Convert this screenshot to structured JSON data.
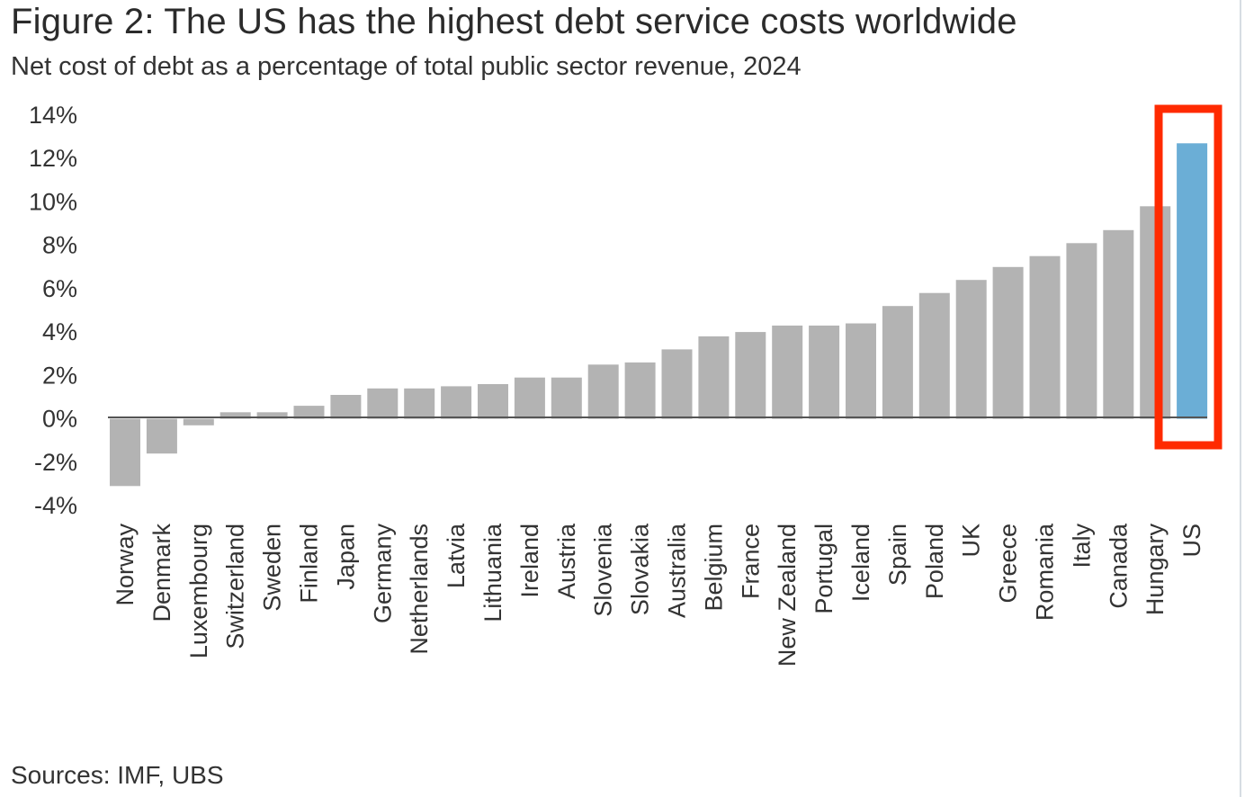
{
  "header": {
    "title": "Figure 2: The US has the highest debt service costs worldwide",
    "subtitle": "Net cost of debt as a percentage of total public sector revenue, 2024"
  },
  "footer": {
    "source": "Sources: IMF, UBS"
  },
  "colors": {
    "bar": "#b3b3b3",
    "highlight_bar": "#6baed6",
    "highlight_box": "#ff2a00",
    "axis": "#555555"
  },
  "chart_data": {
    "type": "bar",
    "title": "Figure 2: The US has the highest debt service costs worldwide",
    "subtitle": "Net cost of debt as a percentage of total public sector revenue, 2024",
    "xlabel": "",
    "ylabel": "",
    "ylim": [
      -4,
      14
    ],
    "yticks": [
      14,
      12,
      10,
      8,
      6,
      4,
      2,
      0,
      -2,
      -4
    ],
    "ytick_labels": [
      "14%",
      "12%",
      "10%",
      "8%",
      "6%",
      "4%",
      "2%",
      "0%",
      "-2%",
      "-4%"
    ],
    "grid": false,
    "highlighted_category": "US",
    "categories": [
      "Norway",
      "Denmark",
      "Luxembourg",
      "Switzerland",
      "Sweden",
      "Finland",
      "Japan",
      "Germany",
      "Netherlands",
      "Latvia",
      "Lithuania",
      "Ireland",
      "Austria",
      "Slovenia",
      "Slovakia",
      "Australia",
      "Belgium",
      "France",
      "New Zealand",
      "Portugal",
      "Iceland",
      "Spain",
      "Poland",
      "UK",
      "Greece",
      "Romania",
      "Italy",
      "Canada",
      "Hungary",
      "US"
    ],
    "values": [
      -3.1,
      -1.6,
      -0.3,
      0.3,
      0.3,
      0.6,
      1.1,
      1.4,
      1.4,
      1.5,
      1.6,
      1.9,
      1.9,
      2.5,
      2.6,
      3.2,
      3.8,
      4.0,
      4.3,
      4.3,
      4.4,
      5.2,
      5.8,
      6.4,
      7.0,
      7.5,
      8.1,
      8.7,
      9.8,
      12.7
    ]
  }
}
